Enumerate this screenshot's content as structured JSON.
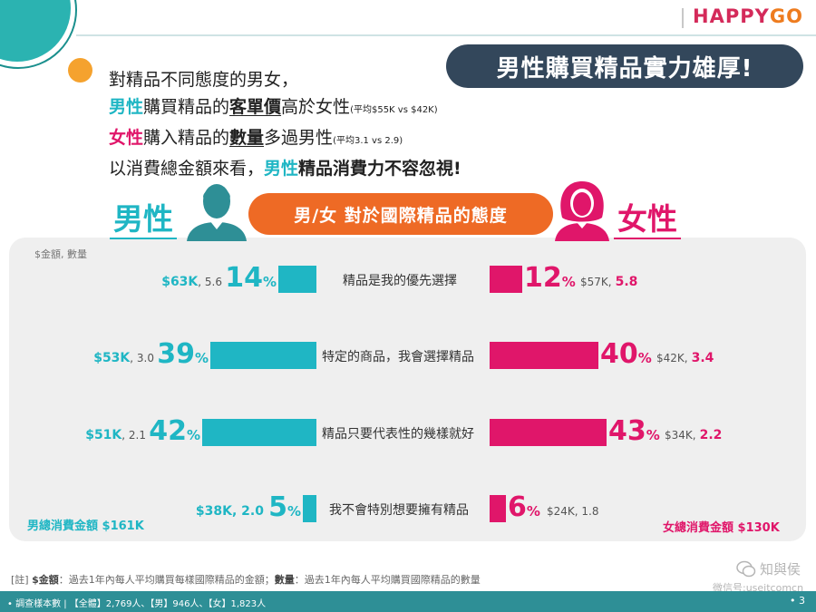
{
  "brand": {
    "logo_a": "HAPPY",
    "logo_b": "GO",
    "logo_color": "#d42a5a",
    "logo_accent": "#ee7c1f"
  },
  "headline": "男性購買精品實力雄厚!",
  "intro": {
    "line1": "對精品不同態度的男女，",
    "line2": {
      "a": "男性",
      "b": "購買精品的",
      "c": "客單價",
      "d": "高於女性",
      "e": "(平均$55K vs $42K)"
    },
    "line3": {
      "a": "女性",
      "b": "購入精品的",
      "c": "數量",
      "d": "多過男性",
      "e": "(平均3.1 vs 2.9)"
    },
    "line4": {
      "a": "以消費總金額來看，",
      "b": "男性",
      "c": "精品消費力不容忽視!"
    }
  },
  "men_title": "男性",
  "women_title": "女性",
  "center_pill": "男/女  對於國際精品的態度",
  "unit_label": "$金額, 數量",
  "colors": {
    "men": "#1fb6c4",
    "women": "#e0166a",
    "pill": "#ee6a25",
    "badge": "#33475b"
  },
  "chart_data": {
    "type": "bar",
    "title": "男/女  對於國際精品的態度",
    "categories": [
      "精品是我的優先選擇",
      "特定的商品，我會選擇精品",
      "精品只要代表性的幾樣就好",
      "我不會特別想要擁有精品"
    ],
    "series": [
      {
        "name": "男性",
        "values": [
          14,
          39,
          42,
          5
        ],
        "amounts": [
          "$63K",
          "$53K",
          "$51K",
          "$38K"
        ],
        "counts": [
          "5.6",
          "3.0",
          "2.1",
          "2.0"
        ]
      },
      {
        "name": "女性",
        "values": [
          12,
          40,
          43,
          6
        ],
        "amounts": [
          "$57K",
          "$42K",
          "$34K",
          "$24K"
        ],
        "counts": [
          "5.8",
          "3.4",
          "2.2",
          "1.8"
        ]
      }
    ],
    "pct_suffix": "%",
    "ylabel": "$金額, 數量",
    "xlim": [
      0,
      45
    ],
    "totals": {
      "men": "男總消費金額 $161K",
      "women": "女總消費金額 $130K"
    }
  },
  "rows_display": [
    {
      "m_amt": "$63K",
      "m_cnt": ", 5.6",
      "m_pct": "14",
      "cat": "精品是我的優先選擇",
      "f_pct": "12",
      "f_amt": "$57K,",
      "f_cnt": "5.8"
    },
    {
      "m_amt": "$53K",
      "m_cnt": ", 3.0",
      "m_pct": "39",
      "cat": "特定的商品，我會選擇精品",
      "f_pct": "40",
      "f_amt": "$42K,",
      "f_cnt": "3.4"
    },
    {
      "m_amt": "$51K",
      "m_cnt": ", 2.1",
      "m_pct": "42",
      "cat": "精品只要代表性的幾樣就好",
      "f_pct": "43",
      "f_amt": "$34K,",
      "f_cnt": "2.2"
    },
    {
      "m_amt": "$38K, 2.0",
      "m_cnt": "",
      "m_pct": "5",
      "cat": "我不會特別想要擁有精品",
      "f_pct": "6",
      "f_amt": "$24K, 1.8",
      "f_cnt": ""
    }
  ],
  "note": {
    "prefix": "[註] ",
    "k1": "$金額",
    "t1": "：過去1年內每人平均購買每樣國際精品的金額；",
    "k2": "數量",
    "t2": "：過去1年內每人平均購買國際精品的數量"
  },
  "footer": "• 調查樣本數 | 【全體】2,769人、【男】946人、【女】1,823人",
  "page_number": "• 3",
  "watermark": {
    "line1": "知與侯",
    "line2": "微信号:useitcomcn",
    "icon": "wechat-icon"
  }
}
